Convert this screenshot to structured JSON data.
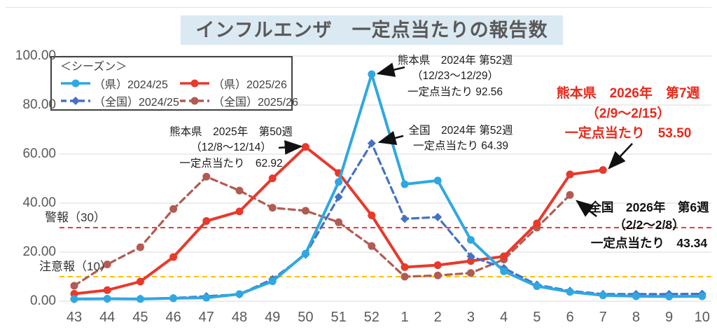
{
  "title": "インフルエンザ　一定点当たりの報告数",
  "legend": {
    "title": "＜シーズン＞",
    "items": [
      {
        "label": "（県）2024/25",
        "series": 0
      },
      {
        "label": "（県）2025/26",
        "series": 1
      },
      {
        "label": "（全国）2024/25",
        "series": 2
      },
      {
        "label": "（全国）2025/26",
        "series": 3
      }
    ]
  },
  "thresholds": [
    {
      "label": "警報（30）",
      "value": 30,
      "color": "#ff3131"
    },
    {
      "label": "注意報（10）",
      "value": 10,
      "color": "#ffc000"
    }
  ],
  "annotations": [
    {
      "lines": [
        "熊本県　2024年 第52週",
        "（12/23～12/29）",
        "一定点当たり 92.56"
      ],
      "style": "black",
      "points_to": {
        "series": "（県）2024/25",
        "week": "52",
        "value": 92.56
      }
    },
    {
      "lines": [
        "熊本県　2025年　第50週",
        "（12/8～12/14）",
        "一定点当たり　62.92"
      ],
      "style": "black",
      "points_to": {
        "series": "（県）2025/26",
        "week": "50",
        "value": 62.92
      }
    },
    {
      "lines": [
        "全国　2024年 第52週",
        "一定点当たり 64.39"
      ],
      "style": "black",
      "points_to": {
        "series": "（全国）2024/25",
        "week": "52",
        "value": 64.39
      }
    },
    {
      "lines": [
        "熊本県　2026年　第7週",
        "（2/9～2/15）",
        "一定点当たり　53.50"
      ],
      "style": "red-bold",
      "points_to": {
        "series": "（県）2025/26",
        "week": "7",
        "value": 53.5
      }
    },
    {
      "lines": [
        "全国　2026年　第6週",
        "（2/2～2/8）",
        "一定点当たり　43.34"
      ],
      "style": "black-bold",
      "points_to": {
        "series": "（全国）2025/26",
        "week": "6",
        "value": 43.34
      }
    }
  ],
  "chart_data": {
    "type": "line",
    "title": "インフルエンザ　一定点当たりの報告数",
    "categories": [
      "43",
      "44",
      "45",
      "46",
      "47",
      "48",
      "49",
      "50",
      "51",
      "52",
      "1",
      "2",
      "3",
      "4",
      "5",
      "6",
      "7",
      "8",
      "9",
      "10"
    ],
    "ylim": [
      0,
      100
    ],
    "yticks": [
      0,
      20,
      40,
      60,
      80,
      100
    ],
    "ytick_format": "two-decimals",
    "grid": true,
    "legend_position": "top-left",
    "reference_lines": [
      {
        "label": "警報（30）",
        "value": 30,
        "color": "#ff3131",
        "style": "dashed"
      },
      {
        "label": "注意報（10）",
        "value": 10,
        "color": "#ffc000",
        "style": "dashed"
      }
    ],
    "series": [
      {
        "name": "（県）2024/25",
        "color": "#2fa8e1",
        "style": "solid",
        "marker": "circle",
        "values": [
          0.9,
          1.0,
          0.9,
          1.2,
          1.4,
          2.9,
          8.1,
          19.4,
          48.6,
          92.56,
          47.7,
          49.2,
          25.0,
          12.2,
          6.1,
          3.8,
          2.4,
          2.0,
          1.9,
          2.0
        ]
      },
      {
        "name": "（県）2025/26",
        "color": "#e8392b",
        "style": "solid",
        "marker": "circle",
        "values": [
          3.0,
          4.5,
          8.0,
          18.0,
          32.7,
          36.6,
          50.1,
          62.92,
          52.3,
          35.0,
          13.9,
          14.7,
          16.4,
          18.3,
          31.7,
          51.7,
          53.5,
          null,
          null,
          null
        ]
      },
      {
        "name": "（全国）2024/25",
        "color": "#4472c4",
        "style": "dashed",
        "marker": "diamond",
        "values": [
          0.8,
          0.9,
          1.0,
          1.3,
          2.0,
          2.8,
          9.0,
          19.0,
          42.5,
          64.39,
          33.6,
          34.3,
          18.3,
          13.5,
          6.7,
          4.2,
          2.9,
          2.9,
          2.9,
          3.0
        ]
      },
      {
        "name": "（全国）2025/26",
        "color": "#b25b52",
        "style": "dashed",
        "marker": "circle",
        "values": [
          6.3,
          15.0,
          22.0,
          37.6,
          50.8,
          45.1,
          38.1,
          36.9,
          32.2,
          22.5,
          10.0,
          10.5,
          11.5,
          17.0,
          30.0,
          43.34,
          null,
          null,
          null,
          null
        ]
      }
    ]
  }
}
